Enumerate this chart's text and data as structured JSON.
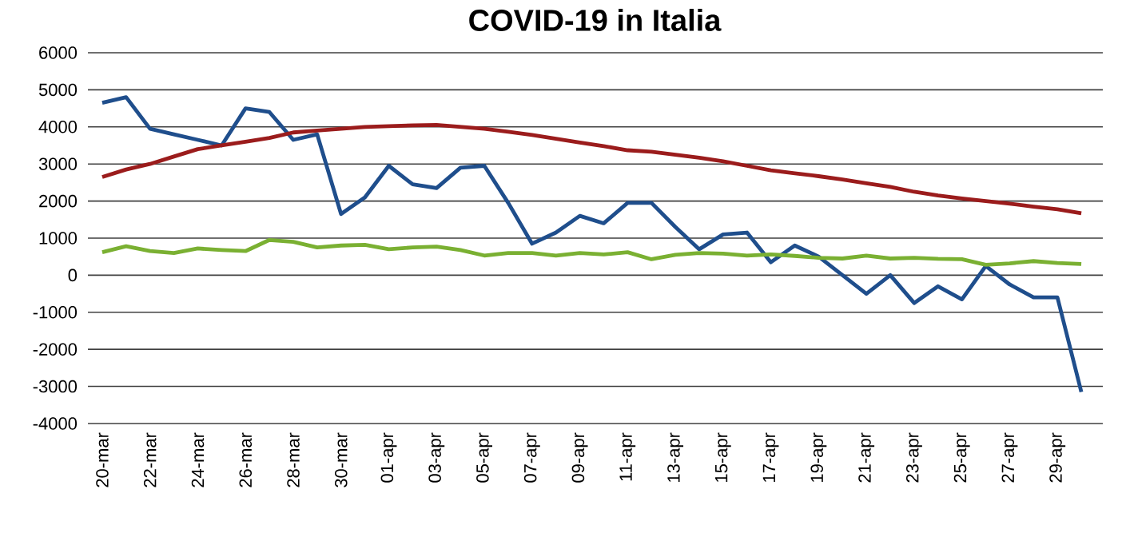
{
  "chart_data": {
    "type": "line",
    "title": "COVID-19 in Italia",
    "categories": [
      "20-mar",
      null,
      "22-mar",
      null,
      "24-mar",
      null,
      "26-mar",
      null,
      "28-mar",
      null,
      "30-mar",
      null,
      "01-apr",
      null,
      "03-apr",
      null,
      "05-apr",
      null,
      "07-apr",
      null,
      "09-apr",
      null,
      "11-apr",
      null,
      "13-apr",
      null,
      "15-apr",
      null,
      "17-apr",
      null,
      "19-apr",
      null,
      "21-apr",
      null,
      "23-apr",
      null,
      "25-apr",
      null,
      "27-apr",
      null,
      "29-apr",
      null
    ],
    "series": [
      {
        "color": "#1f4e8c",
        "values": [
          4650,
          4800,
          3950,
          3800,
          3650,
          3500,
          4500,
          4400,
          3650,
          3800,
          1650,
          2100,
          2950,
          2450,
          2350,
          2900,
          2950,
          1950,
          850,
          1150,
          1600,
          1400,
          1950,
          1950,
          1300,
          700,
          1100,
          1150,
          350,
          800,
          500,
          0,
          -500,
          0,
          -750,
          -300,
          -650,
          250,
          -250,
          -600,
          -600,
          -3150
        ]
      },
      {
        "color": "#9b1c1c",
        "values": [
          2650,
          2850,
          3000,
          3200,
          3400,
          3500,
          3600,
          3700,
          3850,
          3900,
          3950,
          4000,
          4020,
          4040,
          4050,
          4000,
          3950,
          3870,
          3780,
          3680,
          3580,
          3480,
          3370,
          3330,
          3250,
          3170,
          3070,
          2950,
          2830,
          2750,
          2670,
          2580,
          2480,
          2380,
          2250,
          2150,
          2070,
          2000,
          1930,
          1850,
          1780,
          1670
        ]
      },
      {
        "color": "#7ab032",
        "values": [
          620,
          780,
          650,
          600,
          720,
          680,
          650,
          950,
          900,
          750,
          800,
          820,
          700,
          750,
          770,
          680,
          530,
          600,
          600,
          530,
          600,
          560,
          620,
          430,
          550,
          600,
          580,
          530,
          560,
          520,
          470,
          450,
          530,
          450,
          470,
          440,
          430,
          280,
          320,
          380,
          330,
          300
        ]
      }
    ],
    "ylim": [
      -4000,
      6000
    ],
    "yticks": [
      -4000,
      -3000,
      -2000,
      -1000,
      0,
      1000,
      2000,
      3000,
      4000,
      5000,
      6000
    ],
    "grid": "y",
    "marker": "none",
    "line_style": "solid"
  }
}
